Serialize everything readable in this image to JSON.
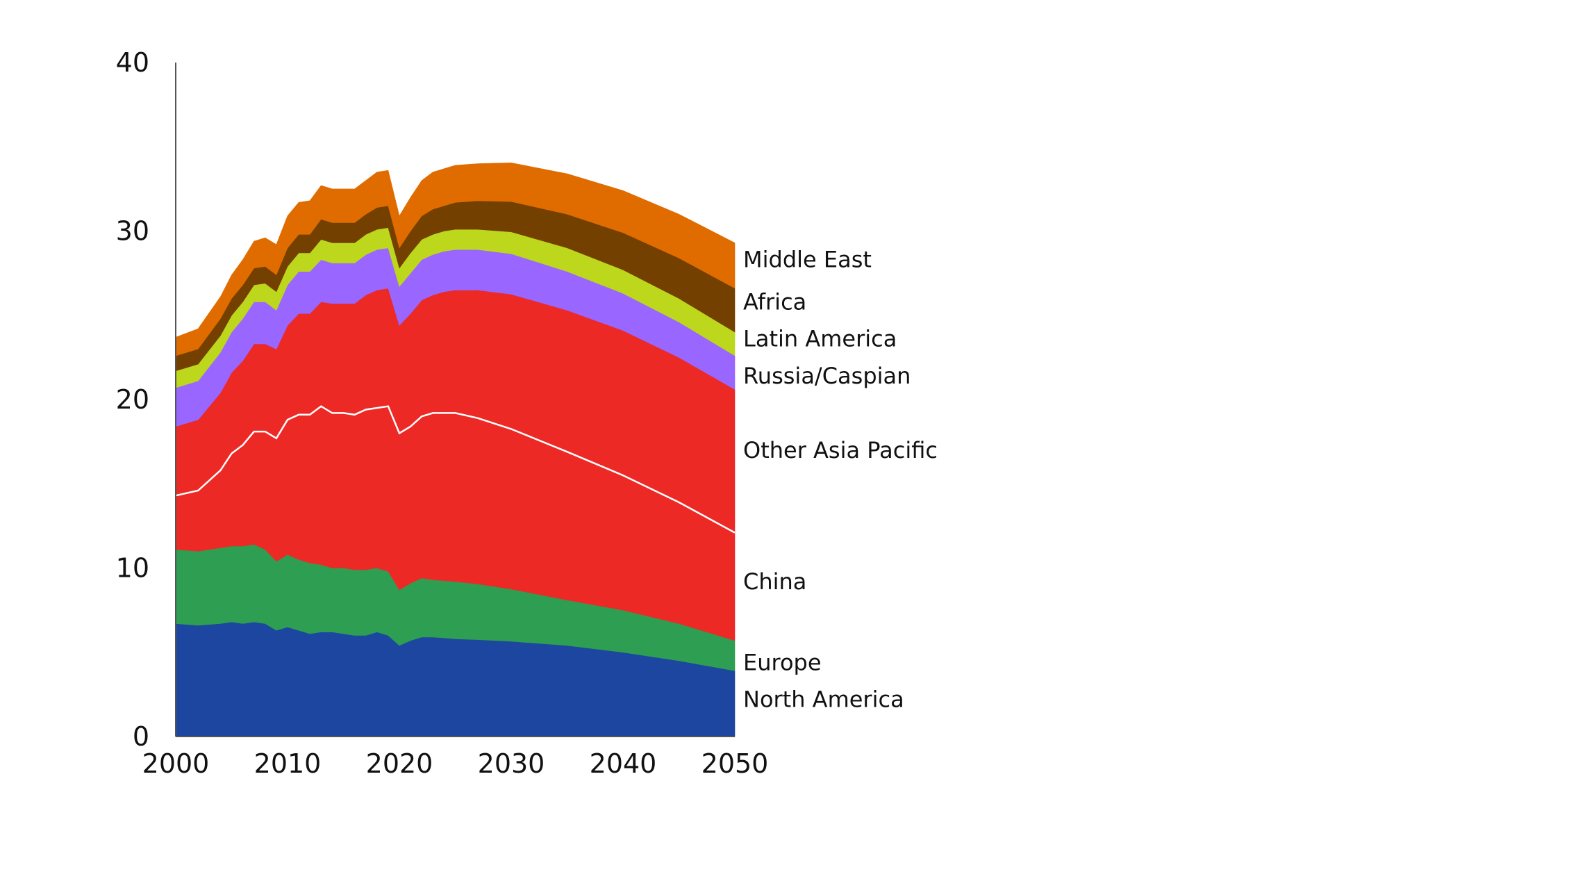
{
  "chart_data": {
    "type": "area",
    "stacked": true,
    "title": "",
    "xlabel": "",
    "ylabel": "",
    "xlim": [
      2000,
      2050
    ],
    "ylim": [
      0,
      40
    ],
    "x_ticks": [
      "2000",
      "2010",
      "2020",
      "2030",
      "2040",
      "2050"
    ],
    "y_ticks": [
      "0",
      "10",
      "20",
      "30",
      "40"
    ],
    "grid": false,
    "legend": "labels at right end of series",
    "x": [
      2000,
      2002,
      2004,
      2005,
      2006,
      2007,
      2008,
      2009,
      2010,
      2011,
      2012,
      2013,
      2014,
      2015,
      2016,
      2017,
      2018,
      2019,
      2020,
      2021,
      2022,
      2023,
      2024,
      2025,
      2027,
      2030,
      2035,
      2040,
      2045,
      2050
    ],
    "series": [
      {
        "name": "North America",
        "color": "#1d46a0",
        "values": [
          6.7,
          6.6,
          6.7,
          6.8,
          6.7,
          6.8,
          6.7,
          6.3,
          6.5,
          6.3,
          6.1,
          6.2,
          6.2,
          6.1,
          6.0,
          6.0,
          6.2,
          6.0,
          5.4,
          5.7,
          5.9,
          5.9,
          5.85,
          5.8,
          5.75,
          5.65,
          5.4,
          5.0,
          4.5,
          3.9
        ]
      },
      {
        "name": "Europe",
        "color": "#2e9e52",
        "values": [
          4.4,
          4.4,
          4.5,
          4.5,
          4.6,
          4.6,
          4.4,
          4.1,
          4.3,
          4.2,
          4.2,
          4.0,
          3.8,
          3.9,
          3.9,
          3.9,
          3.8,
          3.8,
          3.3,
          3.4,
          3.5,
          3.4,
          3.4,
          3.4,
          3.3,
          3.1,
          2.7,
          2.5,
          2.2,
          1.8
        ]
      },
      {
        "name": "China",
        "color": "#ed2926",
        "values": [
          3.2,
          3.6,
          4.6,
          5.5,
          6.0,
          6.7,
          7.0,
          7.3,
          8.0,
          8.6,
          8.8,
          9.4,
          9.2,
          9.2,
          9.2,
          9.5,
          9.5,
          9.8,
          9.3,
          9.3,
          9.6,
          9.9,
          9.95,
          10.0,
          9.85,
          9.5,
          8.8,
          8.0,
          7.2,
          6.4
        ]
      },
      {
        "name": "Other Asia Pacific",
        "color": "#ed2926",
        "values": [
          4.1,
          4.2,
          4.6,
          4.8,
          5.0,
          5.2,
          5.2,
          5.3,
          5.6,
          6.0,
          6.0,
          6.2,
          6.5,
          6.5,
          6.6,
          6.8,
          7.0,
          7.0,
          6.4,
          6.7,
          6.9,
          7.0,
          7.2,
          7.3,
          7.6,
          8.0,
          8.4,
          8.6,
          8.6,
          8.5
        ]
      },
      {
        "name": "Russia/Caspian",
        "color": "#9966ff",
        "values": [
          2.3,
          2.3,
          2.4,
          2.4,
          2.5,
          2.5,
          2.5,
          2.3,
          2.4,
          2.5,
          2.5,
          2.5,
          2.4,
          2.4,
          2.4,
          2.4,
          2.4,
          2.4,
          2.3,
          2.4,
          2.4,
          2.4,
          2.4,
          2.4,
          2.4,
          2.4,
          2.3,
          2.2,
          2.1,
          2.0
        ]
      },
      {
        "name": "Latin America",
        "color": "#bcd71c",
        "values": [
          1.0,
          1.0,
          1.0,
          1.0,
          1.0,
          1.0,
          1.1,
          1.1,
          1.1,
          1.1,
          1.1,
          1.2,
          1.2,
          1.2,
          1.2,
          1.2,
          1.2,
          1.2,
          1.1,
          1.2,
          1.2,
          1.2,
          1.2,
          1.2,
          1.2,
          1.3,
          1.4,
          1.4,
          1.4,
          1.4
        ]
      },
      {
        "name": "Africa",
        "color": "#744000",
        "values": [
          0.9,
          0.9,
          1.0,
          1.0,
          1.0,
          1.0,
          1.0,
          1.0,
          1.1,
          1.1,
          1.1,
          1.2,
          1.2,
          1.2,
          1.2,
          1.2,
          1.3,
          1.3,
          1.2,
          1.3,
          1.4,
          1.5,
          1.5,
          1.6,
          1.7,
          1.8,
          2.0,
          2.2,
          2.4,
          2.6
        ]
      },
      {
        "name": "Middle East",
        "color": "#e06c00",
        "values": [
          1.1,
          1.2,
          1.3,
          1.4,
          1.5,
          1.6,
          1.7,
          1.8,
          1.9,
          1.9,
          2.0,
          2.0,
          2.0,
          2.0,
          2.0,
          2.0,
          2.1,
          2.1,
          1.9,
          2.0,
          2.1,
          2.2,
          2.2,
          2.2,
          2.2,
          2.3,
          2.4,
          2.5,
          2.6,
          2.7
        ]
      }
    ],
    "divider_line": {
      "between": [
        "China",
        "Other Asia Pacific"
      ],
      "color": "#ffffff"
    },
    "label_positions": {
      "Middle East": 28.3,
      "Africa": 25.8,
      "Latin America": 23.6,
      "Russia/Caspian": 21.4,
      "Other Asia Pacific": 17.0,
      "China": 9.2,
      "Europe": 4.4,
      "North America": 2.2
    }
  }
}
